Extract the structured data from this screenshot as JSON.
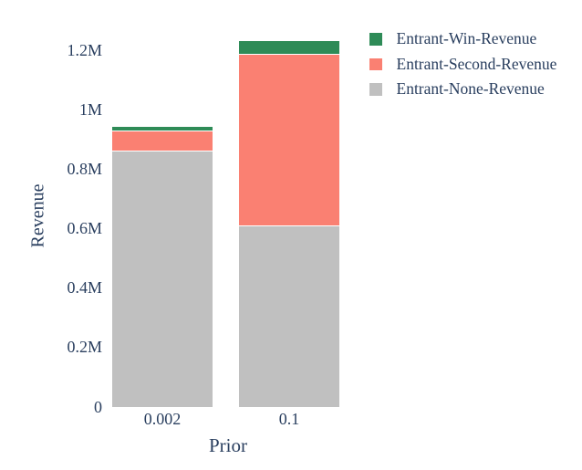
{
  "colors": {
    "text": "#2a3f5f",
    "background": "#ffffff",
    "separator": "#ffffff"
  },
  "chart_data": {
    "type": "bar",
    "stacked": true,
    "orientation": "vertical",
    "title": "",
    "xlabel": "Prior",
    "ylabel": "Revenue",
    "categories": [
      "0.002",
      "0.1"
    ],
    "series": [
      {
        "name": "Entrant-Win-Revenue",
        "color": "#2e8b57",
        "values": [
          10000,
          45000
        ]
      },
      {
        "name": "Entrant-Second-Revenue",
        "color": "#fa8072",
        "values": [
          70000,
          575000
        ]
      },
      {
        "name": "Entrant-None-Revenue",
        "color": "#c0c0c0",
        "values": [
          860000,
          610000
        ]
      }
    ],
    "stack_order_note": "series listed top-of-stack first; stacked bottom-up as None, Second, Win",
    "totals": [
      940000,
      1230000
    ],
    "ylim": [
      0,
      1260000
    ],
    "yticks": [
      {
        "value": 0,
        "label": "0"
      },
      {
        "value": 200000,
        "label": "0.2M"
      },
      {
        "value": 400000,
        "label": "0.4M"
      },
      {
        "value": 600000,
        "label": "0.6M"
      },
      {
        "value": 800000,
        "label": "0.8M"
      },
      {
        "value": 1000000,
        "label": "1M"
      },
      {
        "value": 1200000,
        "label": "1.2M"
      }
    ],
    "grid": false,
    "legend_position": "top-right"
  }
}
